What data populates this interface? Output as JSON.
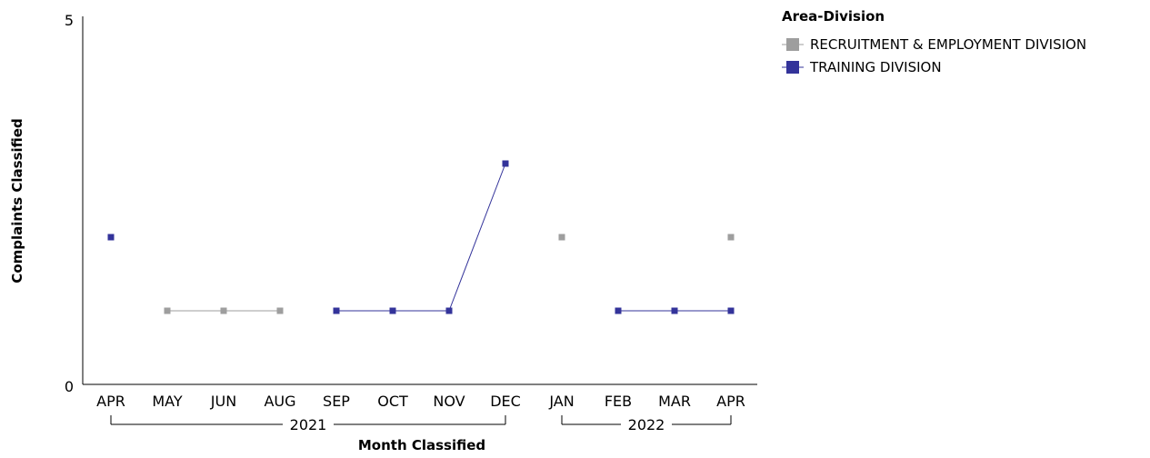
{
  "chart_data": {
    "type": "line",
    "xlabel": "Month Classified",
    "ylabel": "Complaints Classified",
    "ylim": [
      0,
      5
    ],
    "y_ticks": [
      "0",
      "5"
    ],
    "categories": [
      "APR",
      "MAY",
      "JUN",
      "AUG",
      "SEP",
      "OCT",
      "NOV",
      "DEC",
      "JAN",
      "FEB",
      "MAR",
      "APR"
    ],
    "year_groups": [
      {
        "label": "2021",
        "start": 0,
        "end": 7
      },
      {
        "label": "2022",
        "start": 8,
        "end": 11
      }
    ],
    "legend": {
      "title": "Area-Division",
      "placement": "top-right"
    },
    "series": [
      {
        "name": "RECRUITMENT & EMPLOYMENT DIVISION",
        "color": "#9e9e9e",
        "values": [
          null,
          1,
          1,
          1,
          null,
          null,
          null,
          null,
          2,
          null,
          null,
          2
        ]
      },
      {
        "name": "TRAINING DIVISION",
        "color": "#33339a",
        "values": [
          2,
          null,
          null,
          null,
          1,
          1,
          1,
          3,
          null,
          1,
          1,
          1
        ]
      }
    ],
    "grid": false
  }
}
